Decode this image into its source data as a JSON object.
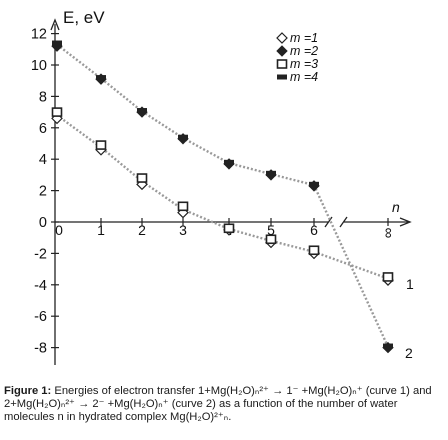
{
  "chart_data": {
    "type": "line",
    "ylabel": "E, eV",
    "xlabel": "n",
    "x_ticks": [
      "0",
      "1",
      "2",
      "3",
      "4",
      "5",
      "6",
      "∞"
    ],
    "y_ticks": [
      "12",
      "10",
      "8",
      "6",
      "4",
      "2",
      "0",
      "-2",
      "-4",
      "-6",
      "-8"
    ],
    "ylim": [
      -8.8,
      12.5
    ],
    "grid": false,
    "legend_position": "top-right",
    "series": [
      {
        "name": "m =1",
        "marker": "open-diamond",
        "curve": "1",
        "points": [
          [
            0,
            6.6
          ],
          [
            1,
            4.6
          ],
          [
            2,
            2.4
          ],
          [
            3,
            0.6
          ],
          [
            4,
            -0.5
          ],
          [
            5,
            -1.3
          ],
          [
            6,
            -2.0
          ],
          [
            "∞",
            -3.7
          ]
        ]
      },
      {
        "name": "m =2",
        "marker": "filled-diamond",
        "curve": "2",
        "points": [
          [
            0,
            11.2
          ],
          [
            1,
            9.1
          ],
          [
            2,
            7.0
          ],
          [
            3,
            5.3
          ],
          [
            4,
            3.7
          ],
          [
            5,
            3.0
          ],
          [
            6,
            2.3
          ],
          [
            "∞",
            -8.0
          ]
        ]
      },
      {
        "name": "m =3",
        "marker": "open-square",
        "curve": "1",
        "points": [
          [
            0,
            7.0
          ],
          [
            1,
            4.9
          ],
          [
            2,
            2.8
          ],
          [
            3,
            1.0
          ],
          [
            4,
            -0.4
          ],
          [
            5,
            -1.1
          ],
          [
            6,
            -1.8
          ],
          [
            "∞",
            -3.5
          ]
        ]
      },
      {
        "name": "m =4",
        "marker": "filled-rect",
        "curve": "2",
        "points": [
          [
            0,
            11.4
          ],
          [
            1,
            9.2
          ],
          [
            2,
            7.1
          ],
          [
            3,
            5.4
          ],
          [
            4,
            3.8
          ],
          [
            5,
            3.1
          ],
          [
            6,
            2.4
          ],
          [
            "∞",
            -7.9
          ]
        ]
      }
    ],
    "curve_labels": [
      "1",
      "2"
    ],
    "caption": {
      "bold": "Figure 1:",
      "text": " Energies of electron transfer 1+Mg(H₂O)ₙ²⁺ → 1⁻ +Mg(H₂O)ₙ⁺ (curve 1) and 2+Mg(H₂O)ₙ²⁺ → 2⁻ +Mg(H₂O)ₙ⁺ (curve 2) as a function of the number of water molecules n in hydrated complex Mg(H₂O)²⁺ₙ."
    },
    "colors": {
      "axis": "#222222",
      "line": "#9a9a9a",
      "text": "#111111"
    }
  }
}
